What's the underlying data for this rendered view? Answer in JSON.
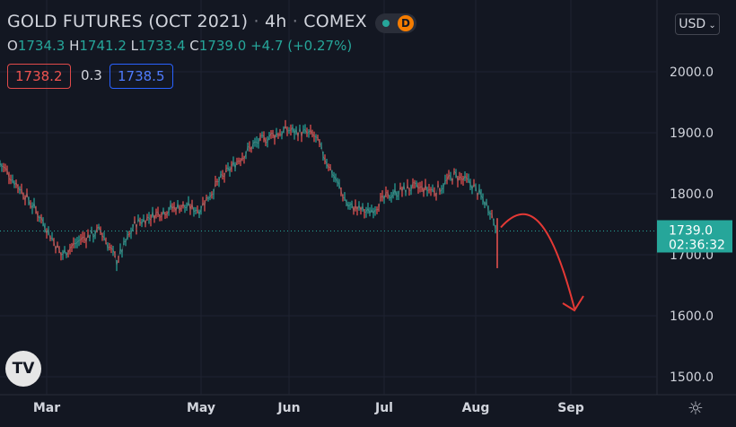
{
  "header": {
    "title": "GOLD FUTURES (OCT 2021)",
    "interval": "4h",
    "exchange": "COMEX",
    "market_status_letter": "D"
  },
  "ohlc": {
    "open_label": "O",
    "open": "1734.3",
    "high_label": "H",
    "high": "1741.2",
    "low_label": "L",
    "low": "1733.4",
    "close_label": "C",
    "close": "1739.0",
    "change": "+4.7 (+0.27%)"
  },
  "trade": {
    "bid": "1738.2",
    "spread": "0.3",
    "ask": "1738.5"
  },
  "currency_button": "USD",
  "price_tag": {
    "price": "1739.0",
    "countdown": "02:36:32"
  },
  "colors": {
    "up": "#26a69a",
    "down": "#ef5350",
    "arrow": "#e53935",
    "background": "#131722",
    "grid": "#1f2331"
  },
  "icons": {
    "logo": "tradingview-logo-icon",
    "settings": "gear-icon",
    "dropdown": "chevron-down-icon"
  },
  "chart_data": {
    "type": "line",
    "y_ticks": [
      "1500.0",
      "1600.0",
      "1700.0",
      "1800.0",
      "1900.0",
      "2000.0"
    ],
    "x_ticks": [
      "Mar",
      "May",
      "Jun",
      "Jul",
      "Aug",
      "Sep"
    ],
    "ylim": [
      1480,
      2100
    ],
    "current_price": 1739.0,
    "series": [
      {
        "x": [
          "Feb 20",
          "Feb 25",
          "Mar 1",
          "Mar 8",
          "Mar 15",
          "Mar 22",
          "Mar 29",
          "Apr 5",
          "Apr 12",
          "Apr 19",
          "Apr 26",
          "May 3",
          "May 10",
          "May 17",
          "May 24",
          "May 31",
          "Jun 7",
          "Jun 14",
          "Jun 21",
          "Jun 28",
          "Jul 5",
          "Jul 12",
          "Jul 19",
          "Jul 26",
          "Aug 2",
          "Aug 6",
          "Aug 9"
        ],
        "values": [
          1850,
          1810,
          1760,
          1700,
          1725,
          1740,
          1690,
          1750,
          1770,
          1780,
          1775,
          1820,
          1850,
          1880,
          1895,
          1905,
          1895,
          1830,
          1780,
          1770,
          1800,
          1810,
          1805,
          1830,
          1815,
          1775,
          1739
        ]
      }
    ],
    "projection": "red curved arrow pointing down toward 1600 in September",
    "grid": true
  }
}
